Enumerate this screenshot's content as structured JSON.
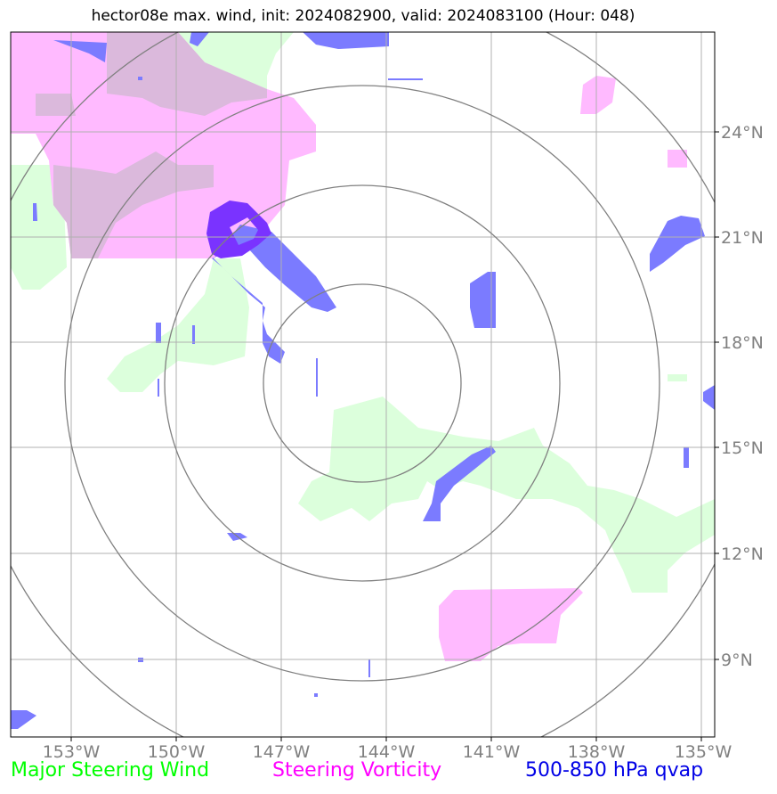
{
  "title": "hector08e max. wind, init: 2024082900, valid: 2024083100 (Hour: 048)",
  "map": {
    "lon_ticks": [
      "153°W",
      "150°W",
      "147°W",
      "144°W",
      "141°W",
      "138°W",
      "135°W"
    ],
    "lat_ticks": [
      "24°N",
      "21°N",
      "18°N",
      "15°N",
      "12°N",
      "9°N"
    ],
    "axis_color": "#808080",
    "grid_color": "#b0b0b0",
    "range_ring_color": "#808080"
  },
  "legend": {
    "wind": {
      "label": "Major Steering Wind",
      "color": "#00ff00"
    },
    "vorticity": {
      "label": "Steering Vorticity",
      "color": "#ff00ff"
    },
    "qvap": {
      "label": "500-850 hPa qvap",
      "color": "#0000e6"
    }
  },
  "fills": {
    "wind_color": "#dcffdc",
    "vorticity_color": "#ffbaff",
    "overlap_color": "#dbb9dc",
    "qvap_color": "#7b7bff",
    "qvap_dark_color": "#7a33ff"
  }
}
